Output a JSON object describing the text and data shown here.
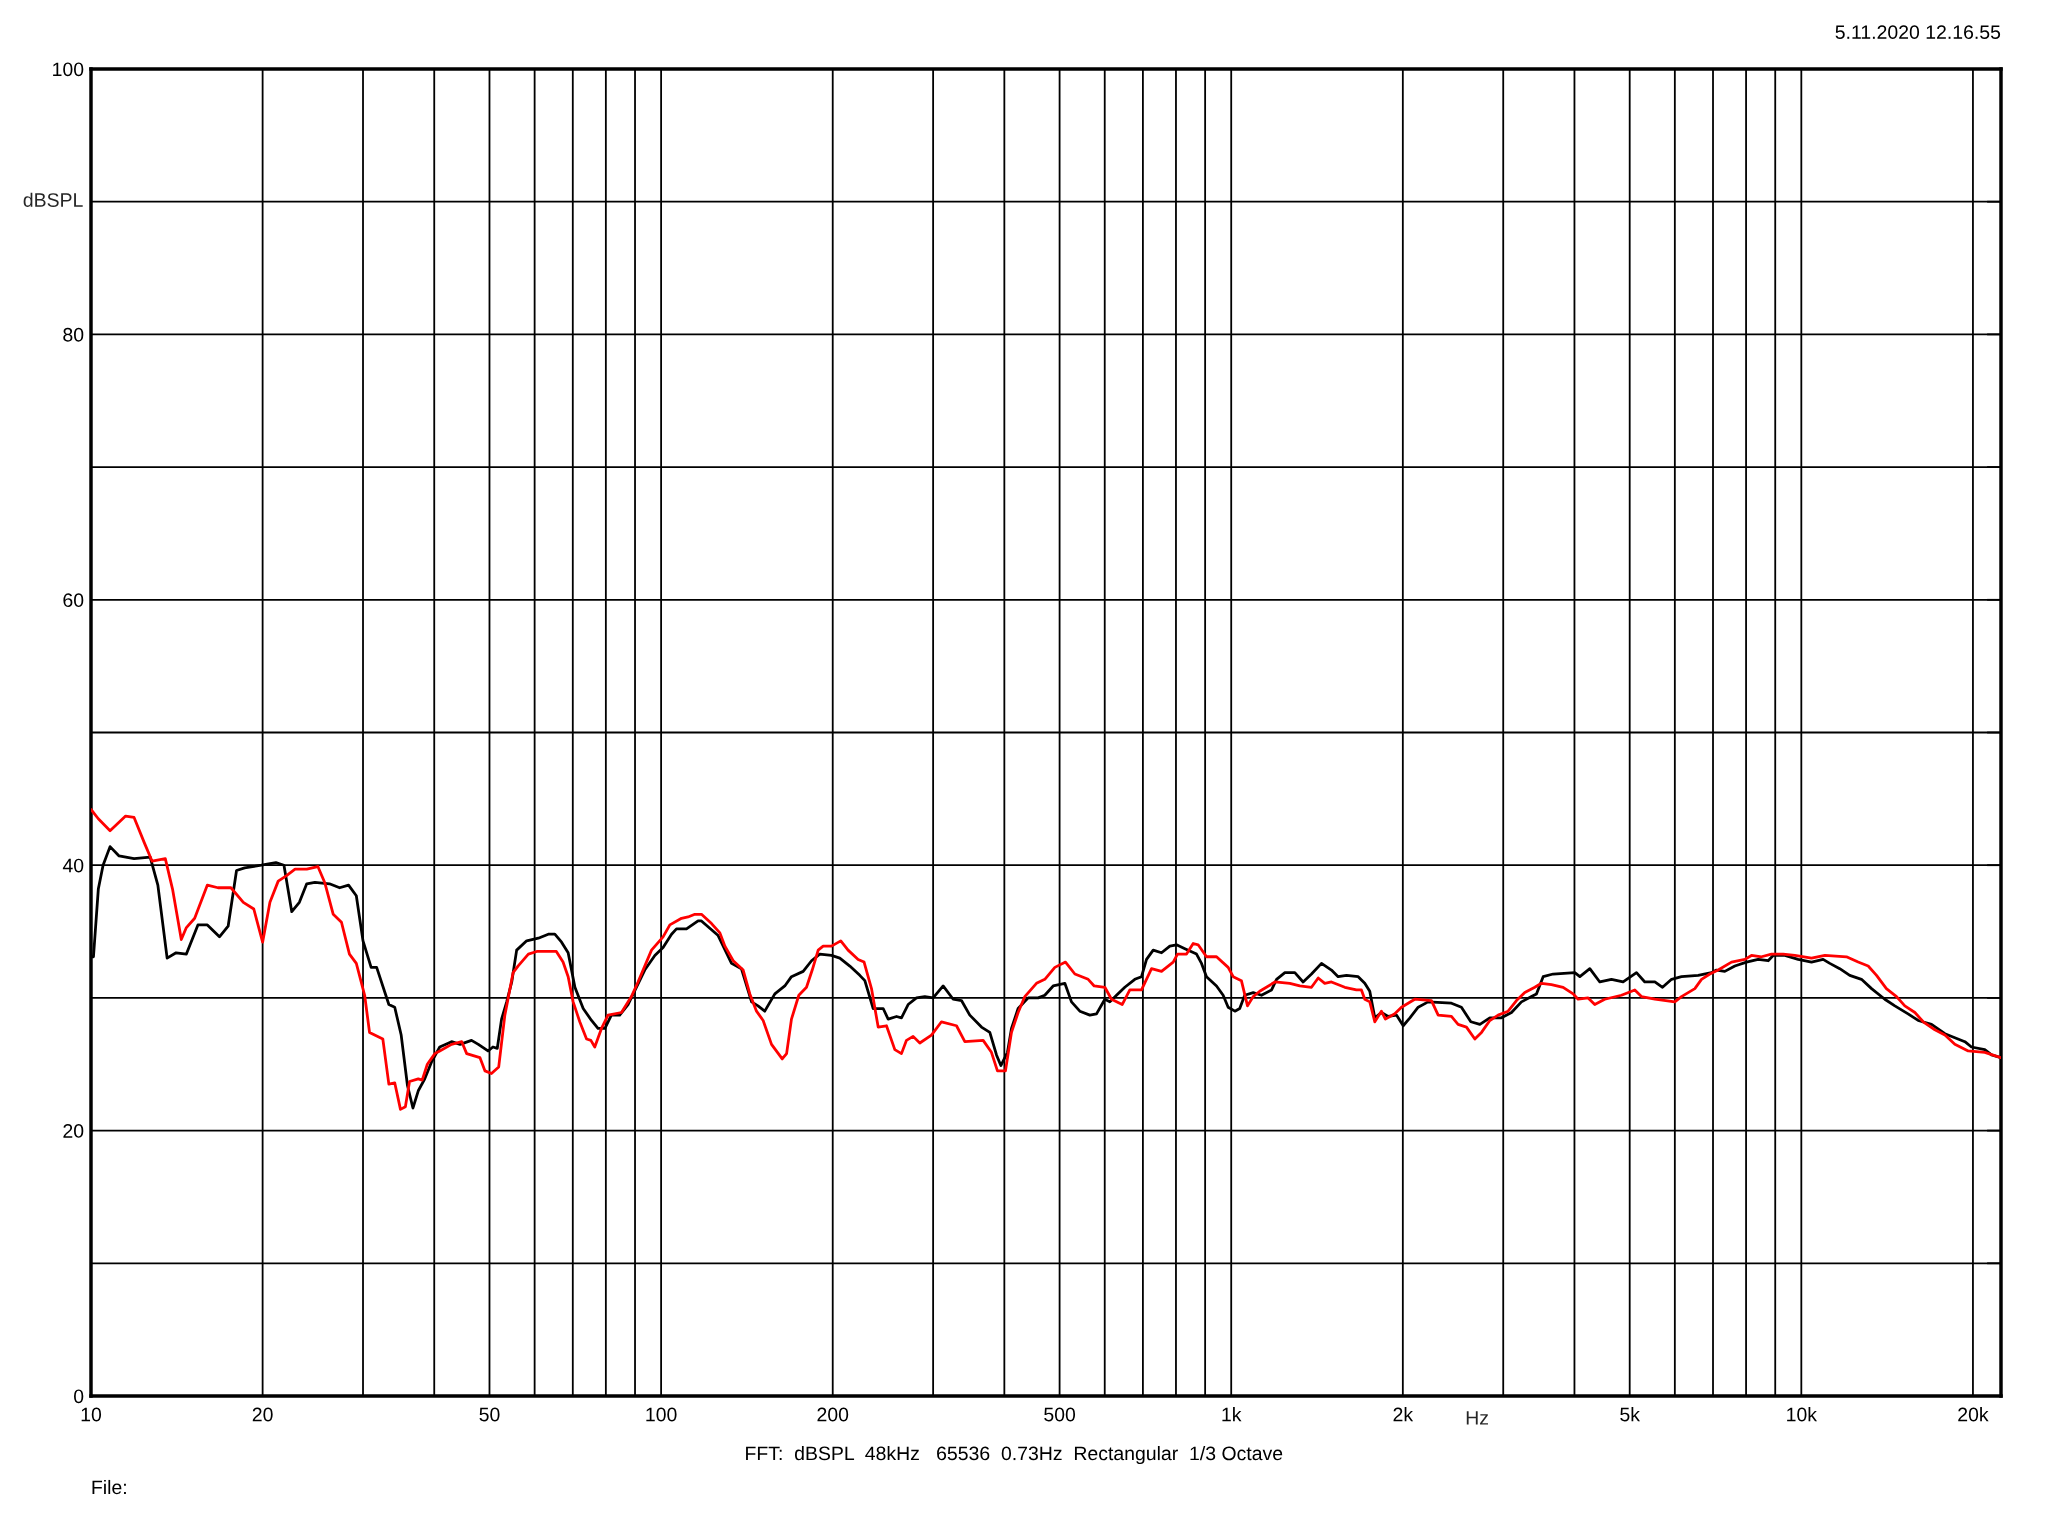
{
  "chart_data": {
    "type": "line",
    "xlabel": "Hz",
    "ylabel": "dBSPL",
    "annotations": [
      "5.11.2020 12.16.55",
      "FFT:  dBSPL  48kHz   65536  0.73Hz  Rectangular  1/3 Octave",
      "File:"
    ],
    "log": "x",
    "grid": true,
    "line_style": "solid",
    "xlim": [
      10,
      22400
    ],
    "ylim": [
      0,
      100
    ],
    "xticks": [
      10,
      20,
      {
        "value": 30,
        "label": null
      },
      {
        "value": 40,
        "label": null
      },
      50,
      {
        "value": 60,
        "label": null
      },
      {
        "value": 70,
        "label": null
      },
      {
        "value": 80,
        "label": null
      },
      {
        "value": 90,
        "label": null
      },
      100,
      200,
      {
        "value": 300,
        "label": null
      },
      {
        "value": 400,
        "label": null
      },
      500,
      {
        "value": 600,
        "label": null
      },
      {
        "value": 700,
        "label": null
      },
      {
        "value": 800,
        "label": null
      },
      {
        "value": 900,
        "label": null
      },
      {
        "value": 1000,
        "label": "1k"
      },
      {
        "value": 2000,
        "label": "2k"
      },
      {
        "value": 3000,
        "label": null
      },
      {
        "value": 4000,
        "label": null
      },
      {
        "value": 5000,
        "label": "5k"
      },
      {
        "value": 6000,
        "label": null
      },
      {
        "value": 7000,
        "label": null
      },
      {
        "value": 8000,
        "label": null
      },
      {
        "value": 9000,
        "label": null
      },
      {
        "value": 10000,
        "label": "10k"
      },
      {
        "value": 20000,
        "label": "20k"
      }
    ],
    "yticks": [
      0,
      {
        "value": 10,
        "label": null
      },
      20,
      {
        "value": 30,
        "label": null
      },
      40,
      {
        "value": 50,
        "label": null
      },
      60,
      {
        "value": 70,
        "label": null
      },
      80,
      {
        "value": 90,
        "label": null
      },
      100
    ],
    "series": [
      {
        "color": "#000000",
        "x": [
          10,
          10.1,
          10.3,
          10.5,
          10.8,
          11.2,
          11.9,
          12.7,
          13.1,
          13.6,
          14.1,
          14.7,
          15.4,
          16.0,
          16.8,
          17.4,
          18.0,
          18.6,
          19.9,
          21.1,
          21.8,
          22.5,
          23.2,
          23.9,
          24.7,
          26.2,
          27.3,
          28.3,
          29.2,
          30.0,
          31.0,
          31.7,
          33.3,
          34.1,
          35.0,
          35.9,
          36.7,
          37.5,
          38.5,
          39.6,
          40.9,
          42.9,
          44.4,
          46.5,
          47.8,
          49.7,
          50.7,
          51.6,
          52.5,
          53.6,
          54.7,
          55.8,
          58.1,
          60.9,
          63.4,
          65.1,
          66.9,
          68.7,
          70.6,
          73.0,
          75.5,
          77.5,
          79.7,
          81.8,
          84.6,
          87.5,
          90.5,
          93.6,
          97.5,
          100.8,
          104.3,
          106.4,
          110.8,
          116.1,
          117.7,
          125.9,
          128.5,
          132.9,
          138.3,
          144.1,
          147.9,
          152.0,
          158.3,
          164.8,
          169.3,
          177.5,
          183.6,
          189.8,
          199.0,
          205.8,
          214.3,
          223.1,
          227.7,
          235.5,
          245.2,
          250.2,
          258.8,
          264.0,
          271.2,
          280.5,
          290.1,
          300.0,
          312.4,
          325.3,
          336.4,
          347.9,
          364.7,
          377.2,
          387.5,
          394.4,
          405.1,
          411.7,
          422.9,
          440.4,
          458.5,
          471.0,
          487.2,
          510.7,
          524.6,
          542.6,
          565.0,
          580.4,
          600.3,
          612.5,
          629.2,
          650.7,
          677.5,
          696.1,
          710.3,
          729.7,
          754.7,
          780.5,
          801.8,
          829.3,
          869.3,
          887.0,
          905.0,
          942.4,
          968.0,
          987.7,
          1015,
          1035,
          1056,
          1093,
          1130,
          1177,
          1201,
          1242,
          1293,
          1337,
          1383,
          1440,
          1499,
          1540,
          1593,
          1670,
          1715,
          1750,
          1786,
          1834,
          1885,
          1950,
          2003,
          2058,
          2128,
          2215,
          2434,
          2534,
          2632,
          2730,
          2842,
          2979,
          3102,
          3229,
          3363,
          3431,
          3525,
          3670,
          4006,
          4088,
          4256,
          4431,
          4645,
          4869,
          5139,
          5315,
          5535,
          5709,
          5921,
          6163,
          6593,
          6957,
          7099,
          7342,
          7645,
          8014,
          8400,
          8747,
          8925,
          9356,
          9873,
          10420,
          10920,
          11220,
          11680,
          12160,
          12750,
          13280,
          14010,
          14590,
          15390,
          16030,
          16920,
          17860,
          18590,
          19360,
          19880,
          20980,
          21560,
          22390
        ],
        "values": [
          33.1,
          33.1,
          38.2,
          40.0,
          41.4,
          40.7,
          40.5,
          40.6,
          38.5,
          33.0,
          33.4,
          33.3,
          35.5,
          35.5,
          34.6,
          35.4,
          39.6,
          39.8,
          40.0,
          40.2,
          40.0,
          36.5,
          37.2,
          38.6,
          38.7,
          38.6,
          38.3,
          38.5,
          37.7,
          34.3,
          32.3,
          32.3,
          29.5,
          29.3,
          27.2,
          23.4,
          21.7,
          23.0,
          23.9,
          25.2,
          26.3,
          26.7,
          26.5,
          26.8,
          26.5,
          26.0,
          26.3,
          26.2,
          28.4,
          29.7,
          31.2,
          33.6,
          34.3,
          34.5,
          34.8,
          34.8,
          34.2,
          33.4,
          30.8,
          29.2,
          28.3,
          27.7,
          27.7,
          28.7,
          28.7,
          29.5,
          30.8,
          32.1,
          33.2,
          33.8,
          34.8,
          35.2,
          35.2,
          35.8,
          35.8,
          34.7,
          33.9,
          32.6,
          32.2,
          29.7,
          29.4,
          29.0,
          30.3,
          30.9,
          31.6,
          32.0,
          32.8,
          33.3,
          33.2,
          33.0,
          32.4,
          31.7,
          31.3,
          29.2,
          29.2,
          28.4,
          28.6,
          28.5,
          29.5,
          30.0,
          30.1,
          30.0,
          30.9,
          29.9,
          29.8,
          28.7,
          27.8,
          27.4,
          25.7,
          24.9,
          25.9,
          27.7,
          29.2,
          30.0,
          30.0,
          30.2,
          30.9,
          31.1,
          29.7,
          29.0,
          28.7,
          28.8,
          29.9,
          29.7,
          30.2,
          30.8,
          31.4,
          31.6,
          32.9,
          33.6,
          33.4,
          33.9,
          34.0,
          33.7,
          33.3,
          32.6,
          31.6,
          30.9,
          30.2,
          29.3,
          29.0,
          29.2,
          30.2,
          30.4,
          30.2,
          30.6,
          31.4,
          31.9,
          31.9,
          31.2,
          31.8,
          32.6,
          32.1,
          31.6,
          31.7,
          31.6,
          31.1,
          30.5,
          28.5,
          28.9,
          28.6,
          28.7,
          27.9,
          28.5,
          29.3,
          29.7,
          29.6,
          29.3,
          28.2,
          28.0,
          28.5,
          28.5,
          28.9,
          29.7,
          30.1,
          30.3,
          31.6,
          31.8,
          31.9,
          31.6,
          32.2,
          31.2,
          31.4,
          31.2,
          31.9,
          31.2,
          31.2,
          30.8,
          31.4,
          31.6,
          31.7,
          31.9,
          32.1,
          32.0,
          32.4,
          32.7,
          32.9,
          32.8,
          33.2,
          33.2,
          32.9,
          32.7,
          32.9,
          32.6,
          32.2,
          31.7,
          31.4,
          30.7,
          29.9,
          29.4,
          28.8,
          28.3,
          28.0,
          27.3,
          27.0,
          26.7,
          26.3,
          26.1,
          25.7,
          25.5
        ]
      },
      {
        "color": "#ff0000",
        "x": [
          10,
          10.3,
          10.8,
          11.5,
          11.9,
          12.4,
          12.8,
          13.5,
          13.9,
          14.4,
          14.7,
          15.2,
          16.0,
          16.7,
          17.6,
          18.5,
          19.3,
          20.0,
          20.6,
          21.3,
          22.0,
          22.8,
          23.9,
          25.0,
          25.7,
          26.6,
          27.5,
          28.4,
          29.2,
          30.2,
          30.8,
          32.5,
          33.3,
          34.1,
          34.9,
          35.6,
          36.2,
          37.5,
          38.1,
          38.9,
          40.1,
          40.9,
          42.9,
          44.7,
          45.6,
          48.1,
          49.1,
          50.4,
          51.9,
          53.2,
          55.0,
          56.1,
          58.5,
          60.5,
          65.5,
          67.3,
          68.7,
          70.1,
          72.0,
          74.0,
          75.3,
          76.5,
          78.6,
          80.7,
          85.2,
          88.7,
          91.1,
          96.2,
          100.8,
          103.6,
          108.6,
          111.5,
          114.6,
          117.7,
          122.6,
          126.8,
          129.4,
          133.8,
          139.3,
          143.1,
          147.0,
          151.0,
          156.2,
          163.1,
          166.0,
          169.3,
          174.4,
          179.9,
          184.1,
          188.6,
          192.4,
          199.0,
          206.6,
          212.8,
          221.6,
          227.0,
          233.9,
          240.3,
          248.5,
          257.0,
          264.0,
          269.4,
          276.7,
          284.3,
          298.0,
          310.3,
          329.7,
          341.0,
          367.2,
          379.7,
          389.0,
          401.8,
          411.7,
          422.9,
          434.5,
          455.4,
          471.0,
          490.5,
          512.1,
          531.8,
          561.2,
          575.0,
          600.3,
          616.6,
          643.8,
          664.0,
          696.1,
          724.8,
          754.7,
          791.1,
          805.1,
          834.9,
          857.6,
          875.0,
          905.0,
          942.4,
          987.7,
          1008,
          1042,
          1068,
          1093,
          1122,
          1193,
          1267,
          1319,
          1383,
          1421,
          1459,
          1499,
          1582,
          1658,
          1692,
          1715,
          1750,
          1786,
          1834,
          1864,
          1936,
          1989,
          2099,
          2245,
          2307,
          2434,
          2500,
          2586,
          2675,
          2748,
          2842,
          2939,
          3060,
          3165,
          3273,
          3408,
          3501,
          3645,
          3821,
          3979,
          4060,
          4227,
          4342,
          4521,
          4836,
          5104,
          5243,
          5535,
          5999,
          6163,
          6505,
          6682,
          6911,
          7147,
          7543,
          7960,
          8177,
          8514,
          8865,
          9293,
          9741,
          10420,
          11000,
          12000,
          12580,
          13100,
          13550,
          14100,
          14690,
          15190,
          15820,
          16360,
          17150,
          17860,
          18590,
          19620,
          20980,
          22390
        ],
        "values": [
          44.2,
          43.5,
          42.6,
          43.7,
          43.6,
          41.7,
          40.3,
          40.5,
          38.2,
          34.4,
          35.3,
          36.0,
          38.5,
          38.3,
          38.3,
          37.2,
          36.7,
          34.2,
          37.2,
          38.8,
          39.2,
          39.7,
          39.7,
          39.9,
          38.7,
          36.3,
          35.7,
          33.3,
          32.6,
          30.2,
          27.4,
          26.9,
          23.5,
          23.6,
          21.6,
          21.8,
          23.7,
          23.9,
          23.8,
          25.0,
          25.8,
          26.0,
          26.5,
          26.7,
          25.8,
          25.5,
          24.5,
          24.3,
          24.8,
          28.7,
          31.9,
          32.4,
          33.3,
          33.5,
          33.5,
          32.7,
          31.6,
          29.7,
          28.2,
          26.9,
          26.8,
          26.3,
          27.7,
          28.7,
          28.9,
          30.1,
          31.2,
          33.6,
          34.6,
          35.5,
          36.0,
          36.1,
          36.3,
          36.3,
          35.6,
          34.9,
          33.9,
          32.8,
          32.1,
          30.3,
          29.0,
          28.3,
          26.5,
          25.4,
          25.8,
          28.4,
          30.2,
          30.8,
          32.1,
          33.6,
          33.9,
          33.9,
          34.3,
          33.6,
          32.9,
          32.7,
          30.7,
          27.8,
          27.9,
          26.1,
          25.8,
          26.8,
          27.1,
          26.6,
          27.2,
          28.2,
          27.9,
          26.7,
          26.8,
          25.9,
          24.5,
          24.5,
          27.4,
          28.9,
          30.1,
          31.1,
          31.4,
          32.3,
          32.7,
          31.8,
          31.4,
          30.9,
          30.8,
          29.9,
          29.5,
          30.6,
          30.6,
          32.2,
          32.0,
          32.7,
          33.3,
          33.3,
          34.1,
          34.0,
          33.1,
          33.1,
          32.3,
          31.6,
          31.3,
          29.4,
          30.1,
          30.5,
          31.2,
          31.1,
          30.9,
          30.8,
          31.5,
          31.1,
          31.2,
          30.8,
          30.6,
          30.6,
          29.9,
          29.7,
          28.2,
          29.0,
          28.4,
          28.8,
          29.3,
          29.9,
          29.8,
          28.7,
          28.6,
          28.0,
          27.8,
          26.9,
          27.4,
          28.3,
          28.7,
          29.0,
          29.8,
          30.4,
          30.8,
          31.1,
          31.0,
          30.8,
          30.3,
          29.9,
          30.0,
          29.5,
          29.9,
          30.2,
          30.6,
          30.1,
          29.9,
          29.7,
          30.1,
          30.7,
          31.4,
          31.8,
          32.1,
          32.7,
          32.9,
          33.2,
          33.1,
          33.3,
          33.3,
          33.2,
          33.0,
          33.2,
          33.1,
          32.7,
          32.4,
          31.7,
          30.7,
          30.1,
          29.4,
          28.9,
          28.2,
          27.6,
          27.2,
          26.5,
          26.0,
          25.9,
          25.5
        ]
      }
    ]
  }
}
